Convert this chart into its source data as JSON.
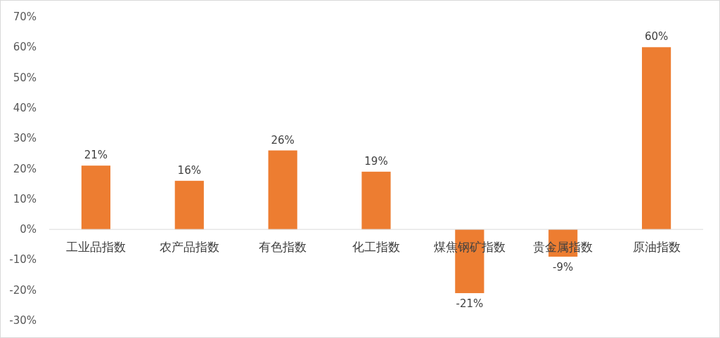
{
  "chart_data": {
    "type": "bar",
    "categories": [
      "工业品指数",
      "农产品指数",
      "有色指数",
      "化工指数",
      "煤焦钢矿指数",
      "贵金属指数",
      "原油指数"
    ],
    "values": [
      21,
      16,
      26,
      19,
      -21,
      -9,
      60
    ],
    "color": "#ed7d31",
    "value_labels": [
      "21%",
      "16%",
      "26%",
      "19%",
      "-21%",
      "-9%",
      "60%"
    ],
    "ylim": [
      -30,
      70
    ],
    "yticks": [
      {
        "value": -30,
        "label": "-30%"
      },
      {
        "value": -20,
        "label": "-20%"
      },
      {
        "value": -10,
        "label": "-10%"
      },
      {
        "value": 0,
        "label": "0%"
      },
      {
        "value": 10,
        "label": "10%"
      },
      {
        "value": 20,
        "label": "20%"
      },
      {
        "value": 30,
        "label": "30%"
      },
      {
        "value": 40,
        "label": "40%"
      },
      {
        "value": 50,
        "label": "50%"
      },
      {
        "value": 60,
        "label": "60%"
      },
      {
        "value": 70,
        "label": "70%"
      }
    ]
  }
}
